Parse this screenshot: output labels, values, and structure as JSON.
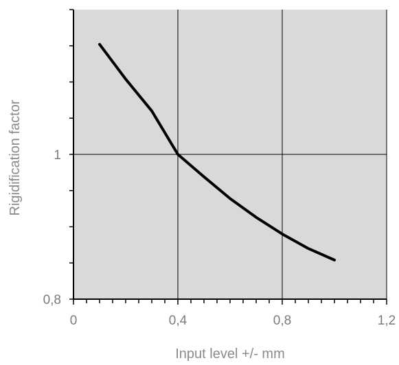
{
  "chart_data": {
    "type": "line",
    "title": "",
    "xlabel": "Input level +/- mm",
    "ylabel": "Rigidification factor",
    "xlim": [
      0,
      1.2
    ],
    "ylim": [
      0.8,
      1.2
    ],
    "x_ticks": [
      0,
      0.4,
      0.8,
      1.2
    ],
    "x_tick_labels": [
      "0",
      "0,4",
      "0,8",
      "1,2"
    ],
    "y_ticks": [
      0.8,
      1.0
    ],
    "y_tick_labels": [
      "0,8",
      "1"
    ],
    "grid": true,
    "legend": "none",
    "colors": {
      "plot_background": "#d9d9d9",
      "line": "#000000",
      "axis": "#000000",
      "text": "#7a7a7a"
    },
    "series": [
      {
        "x": [
          0.1,
          0.2,
          0.3,
          0.4,
          0.5,
          0.6,
          0.7,
          0.8,
          0.9,
          1.0
        ],
        "y": [
          1.152,
          1.104,
          1.06,
          1.0,
          0.969,
          0.939,
          0.913,
          0.89,
          0.87,
          0.854
        ]
      }
    ]
  }
}
